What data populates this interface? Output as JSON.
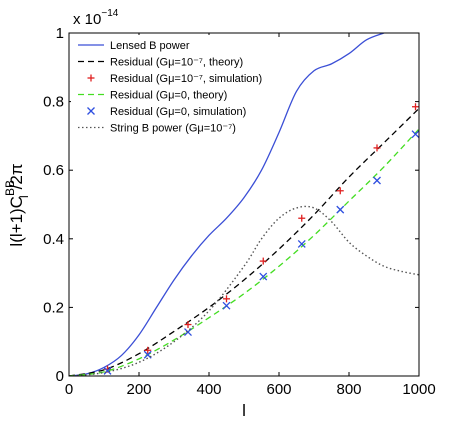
{
  "chart_data": {
    "type": "line",
    "xlabel": "l",
    "ylabel": "l(l+1)C",
    "ylabel_sup": "BB",
    "ylabel_sub": "l",
    "ylabel_tail": "/2π",
    "exponent_base": "x 10",
    "exponent_power": "−14",
    "xlim": [
      0,
      1000
    ],
    "ylim": [
      0,
      1
    ],
    "xticks": [
      "0",
      "200",
      "400",
      "600",
      "800",
      "1000"
    ],
    "yticks": [
      "0",
      "0.2",
      "0.4",
      "0.6",
      "0.8",
      "1"
    ],
    "legend_position": "top-left",
    "series": [
      {
        "name": "Lensed B power",
        "style": "solid",
        "color": "#3b4fd6",
        "marker": "none",
        "x": [
          0,
          50,
          100,
          150,
          200,
          250,
          300,
          350,
          400,
          450,
          500,
          550,
          600,
          650,
          700,
          750,
          800,
          850,
          900
        ],
        "y": [
          0,
          0.006,
          0.025,
          0.06,
          0.12,
          0.2,
          0.28,
          0.35,
          0.41,
          0.46,
          0.52,
          0.6,
          0.71,
          0.83,
          0.89,
          0.91,
          0.94,
          0.98,
          1.0
        ]
      },
      {
        "name": "Residual (Gμ=10⁻⁷, theory)",
        "style": "dashed",
        "color": "#000000",
        "marker": "none",
        "x": [
          0,
          100,
          200,
          300,
          400,
          500,
          600,
          700,
          800,
          900,
          1000
        ],
        "y": [
          0,
          0.018,
          0.065,
          0.13,
          0.2,
          0.28,
          0.37,
          0.47,
          0.58,
          0.68,
          0.78
        ]
      },
      {
        "name": "Residual (Gμ=10⁻⁷, simulation)",
        "style": "none",
        "color": "#e02020",
        "marker": "plus",
        "x": [
          110,
          225,
          340,
          450,
          555,
          665,
          775,
          880,
          990
        ],
        "y": [
          0.02,
          0.075,
          0.15,
          0.225,
          0.335,
          0.46,
          0.54,
          0.665,
          0.785
        ]
      },
      {
        "name": "Residual (Gμ=0, theory)",
        "style": "dashed",
        "color": "#44dd22",
        "marker": "none",
        "x": [
          0,
          100,
          200,
          300,
          400,
          500,
          600,
          700,
          800,
          900,
          1000
        ],
        "y": [
          0,
          0.012,
          0.05,
          0.105,
          0.17,
          0.24,
          0.32,
          0.41,
          0.51,
          0.61,
          0.72
        ]
      },
      {
        "name": "Residual (Gμ=0, simulation)",
        "style": "none",
        "color": "#3050e0",
        "marker": "x",
        "x": [
          110,
          225,
          340,
          450,
          555,
          665,
          775,
          880,
          990
        ],
        "y": [
          0.015,
          0.062,
          0.128,
          0.205,
          0.29,
          0.385,
          0.485,
          0.57,
          0.705
        ]
      },
      {
        "name": "String B power (Gμ=10⁻⁷)",
        "style": "dotted",
        "color": "#555555",
        "marker": "none",
        "x": [
          0,
          100,
          200,
          300,
          400,
          500,
          550,
          600,
          650,
          700,
          750,
          800,
          850,
          900,
          950,
          1000
        ],
        "y": [
          0,
          0.01,
          0.04,
          0.1,
          0.19,
          0.32,
          0.4,
          0.46,
          0.49,
          0.49,
          0.45,
          0.39,
          0.35,
          0.32,
          0.305,
          0.295
        ]
      }
    ]
  }
}
